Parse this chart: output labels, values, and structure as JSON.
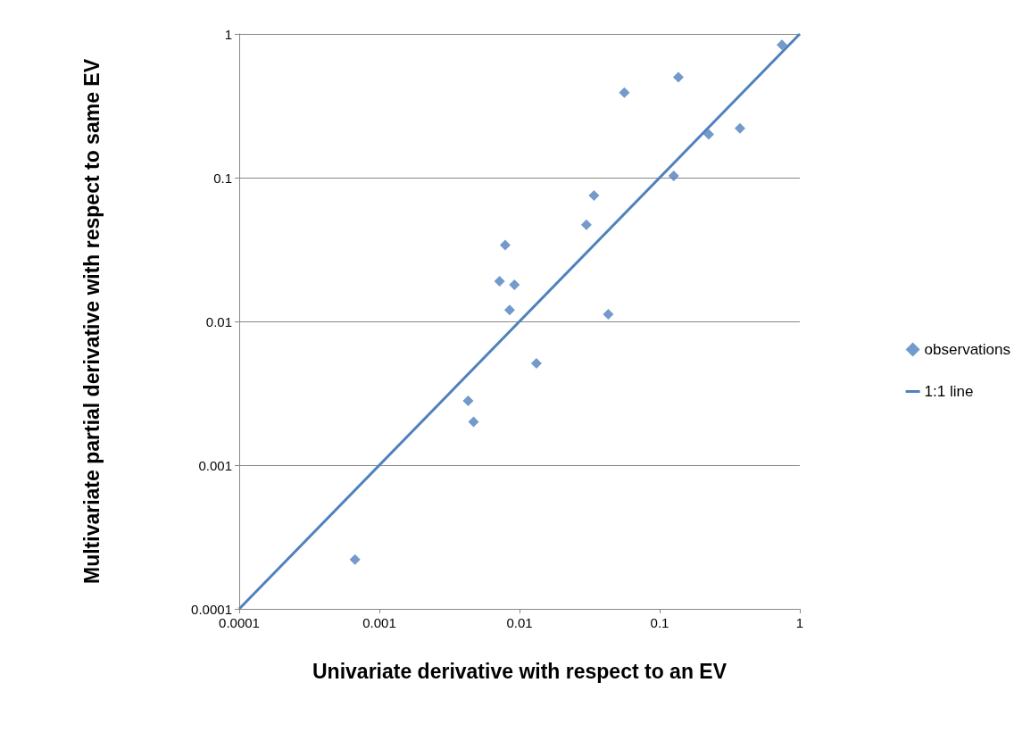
{
  "chart_data": {
    "type": "scatter",
    "xlabel": "Univariate derivative with respect to an EV",
    "ylabel": "Multivariate partial derivative with respect to same EV",
    "log": "xy",
    "grid": "y",
    "legend": "right",
    "marker": "diamond",
    "xlim": [
      0.0001,
      1
    ],
    "xticks": [
      0.0001,
      0.001,
      0.01,
      0.1,
      1
    ],
    "ylim": [
      0.0001,
      1
    ],
    "yticks": [
      0.0001,
      0.001,
      0.01,
      0.1,
      1
    ],
    "series": [
      {
        "name": "observations",
        "color": "#4f81bd",
        "x": [
          0.00067,
          0.0043,
          0.0047,
          0.0072,
          0.0092,
          0.0085,
          0.0079,
          0.0132,
          0.03,
          0.034,
          0.043,
          0.056,
          0.126,
          0.136,
          0.224,
          0.374,
          0.746
        ],
        "values": [
          0.00022,
          0.0028,
          0.002,
          0.019,
          0.018,
          0.012,
          0.034,
          0.0051,
          0.047,
          0.075,
          0.0112,
          0.39,
          0.103,
          0.5,
          0.2,
          0.22,
          0.84
        ]
      },
      {
        "name": "1:1 line",
        "type": "line",
        "color": "#4f81bd",
        "marker": "none",
        "x": [
          0.0001,
          1
        ],
        "values": [
          0.0001,
          1
        ]
      }
    ]
  }
}
